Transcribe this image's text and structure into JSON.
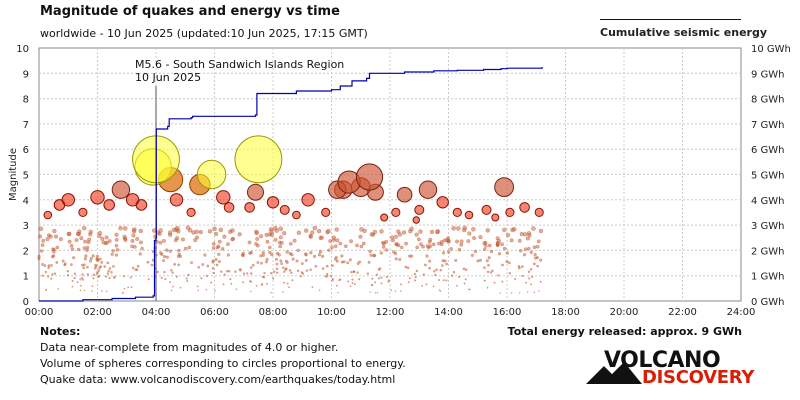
{
  "header": {
    "title": "Magnitude of quakes and energy vs time",
    "subtitle": "worldwide - 10 Jun 2025 (updated:10 Jun 2025, 17:15 GMT)"
  },
  "legend": {
    "label": "Cumulative seismic energy",
    "color": "#0000aa"
  },
  "colors": {
    "large_quake_fill": "#ffff33",
    "large_quake_stroke": "#999900",
    "medium_quake_fill": "#dd6600",
    "red_quake_fill": "#ee2200",
    "small_quake_stroke": "#aa3300",
    "energy_line": "#0000aa"
  },
  "annotation": {
    "line1": "M5.6 - South Sandwich Islands Region",
    "line2": "10 Jun 2025",
    "hour": 4.0
  },
  "notes": {
    "title": "Notes:",
    "line1": "Data near-complete from magnitudes of 4.0 or higher.",
    "line2": "Volume of spheres corresponding to circles proportional to energy.",
    "line3": "Quake data: www.volcanodiscovery.com/earthquakes/today.html"
  },
  "total_energy": "Total energy released: approx. 9 GWh",
  "logo": {
    "top": "VOLCANO",
    "bottom": "DISCOVERY"
  },
  "chart_data": {
    "type": "scatter",
    "title": "Magnitude of quakes and energy vs time",
    "xlabel": "",
    "ylabel": "Magnitude",
    "y2label": "",
    "xlim": [
      0,
      24
    ],
    "ylim": [
      0,
      10
    ],
    "y2lim": [
      0,
      10
    ],
    "x_ticks": [
      "00:00",
      "02:00",
      "04:00",
      "06:00",
      "08:00",
      "10:00",
      "12:00",
      "14:00",
      "16:00",
      "18:00",
      "20:00",
      "22:00",
      "24:00"
    ],
    "y_ticks": [
      "0",
      "1",
      "2",
      "3",
      "4",
      "5",
      "6",
      "7",
      "8",
      "9",
      "10"
    ],
    "y2_ticks": [
      "0 GWh",
      "1 GWh",
      "2 GWh",
      "3 GWh",
      "4 GWh",
      "5 GWh",
      "6 GWh",
      "7 GWh",
      "8 GWh",
      "9 GWh",
      "10 GWh"
    ],
    "quakes": [
      {
        "t": 4.0,
        "m": 5.6
      },
      {
        "t": 3.9,
        "m": 5.3
      },
      {
        "t": 7.5,
        "m": 5.6
      },
      {
        "t": 5.9,
        "m": 5.0
      },
      {
        "t": 11.3,
        "m": 4.9
      },
      {
        "t": 4.5,
        "m": 4.8
      },
      {
        "t": 5.5,
        "m": 4.6
      },
      {
        "t": 2.8,
        "m": 4.4
      },
      {
        "t": 10.4,
        "m": 4.4
      },
      {
        "t": 10.6,
        "m": 4.7
      },
      {
        "t": 10.2,
        "m": 4.4
      },
      {
        "t": 11.0,
        "m": 4.5
      },
      {
        "t": 11.5,
        "m": 4.3
      },
      {
        "t": 13.3,
        "m": 4.4
      },
      {
        "t": 15.9,
        "m": 4.5
      },
      {
        "t": 12.5,
        "m": 4.2
      },
      {
        "t": 4.7,
        "m": 4.0
      },
      {
        "t": 7.4,
        "m": 4.3
      },
      {
        "t": 6.3,
        "m": 4.1
      },
      {
        "t": 9.2,
        "m": 4.0
      },
      {
        "t": 3.2,
        "m": 4.0
      },
      {
        "t": 2.0,
        "m": 4.1
      },
      {
        "t": 1.0,
        "m": 4.0
      },
      {
        "t": 0.7,
        "m": 3.8
      },
      {
        "t": 2.4,
        "m": 3.8
      },
      {
        "t": 3.5,
        "m": 3.8
      },
      {
        "t": 6.5,
        "m": 3.7
      },
      {
        "t": 7.2,
        "m": 3.7
      },
      {
        "t": 8.0,
        "m": 3.9
      },
      {
        "t": 8.4,
        "m": 3.6
      },
      {
        "t": 9.8,
        "m": 3.5
      },
      {
        "t": 12.2,
        "m": 3.5
      },
      {
        "t": 13.0,
        "m": 3.6
      },
      {
        "t": 14.3,
        "m": 3.5
      },
      {
        "t": 15.3,
        "m": 3.6
      },
      {
        "t": 16.6,
        "m": 3.7
      },
      {
        "t": 17.1,
        "m": 3.5
      },
      {
        "t": 16.1,
        "m": 3.5
      },
      {
        "t": 13.8,
        "m": 3.9
      },
      {
        "t": 0.3,
        "m": 3.4
      },
      {
        "t": 1.5,
        "m": 3.5
      },
      {
        "t": 5.2,
        "m": 3.5
      },
      {
        "t": 8.8,
        "m": 3.4
      },
      {
        "t": 11.8,
        "m": 3.3
      },
      {
        "t": 14.7,
        "m": 3.4
      },
      {
        "t": 12.9,
        "m": 3.2
      },
      {
        "t": 15.6,
        "m": 3.3
      }
    ],
    "cumulative_energy": {
      "t": [
        0.0,
        1.5,
        2.5,
        3.3,
        3.9,
        3.95,
        4.0,
        4.01,
        4.4,
        4.45,
        5.2,
        5.25,
        7.4,
        7.45,
        8.8,
        10.0,
        10.3,
        10.7,
        11.2,
        11.3,
        12.5,
        13.5,
        14.3,
        15.2,
        15.8,
        16.0,
        17.2
      ],
      "gwh": [
        0.0,
        0.05,
        0.1,
        0.15,
        0.2,
        2.4,
        2.5,
        6.8,
        6.9,
        7.2,
        7.25,
        7.3,
        7.35,
        8.2,
        8.3,
        8.35,
        8.5,
        8.7,
        8.8,
        9.0,
        9.05,
        9.1,
        9.12,
        9.15,
        9.18,
        9.2,
        9.25
      ]
    }
  }
}
